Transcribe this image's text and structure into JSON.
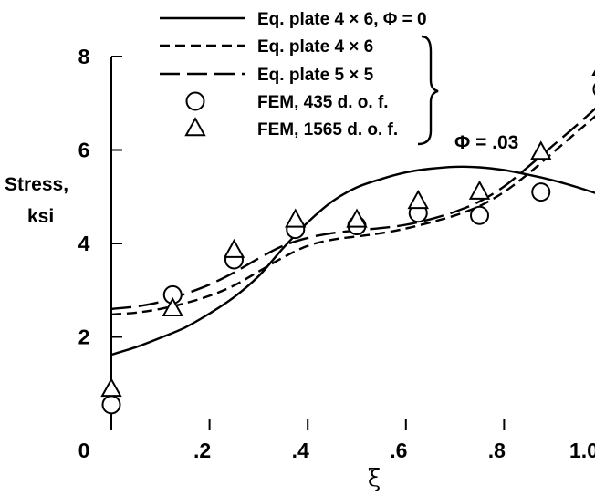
{
  "chart_data": {
    "type": "line",
    "title": "",
    "xlabel": "ξ",
    "ylabel": [
      "Stress,",
      "ksi"
    ],
    "xlim": [
      0,
      1.0
    ],
    "ylim": [
      0,
      8
    ],
    "xticks": [
      0,
      0.2,
      0.4,
      0.6,
      0.8,
      1.0
    ],
    "xtick_labels": [
      "0",
      ".2",
      ".4",
      ".6",
      ".8",
      "1.0"
    ],
    "yticks": [
      2,
      4,
      6,
      8
    ],
    "ytick_labels": [
      "2",
      "4",
      "6",
      "8"
    ],
    "legend_position": "top",
    "annotation": "Φ = .03",
    "series": [
      {
        "name": "Eq.  plate 4 × 6, Φ = 0",
        "kind": "line",
        "dash": "solid",
        "x": [
          0,
          0.05,
          0.1,
          0.15,
          0.2,
          0.25,
          0.3,
          0.35,
          0.4,
          0.45,
          0.5,
          0.55,
          0.6,
          0.65,
          0.7,
          0.75,
          0.8,
          0.85,
          0.9,
          0.95,
          1.0
        ],
        "y": [
          1.62,
          1.78,
          1.98,
          2.2,
          2.5,
          2.85,
          3.3,
          3.9,
          4.45,
          4.9,
          5.2,
          5.38,
          5.52,
          5.6,
          5.64,
          5.63,
          5.57,
          5.47,
          5.35,
          5.2,
          5.03
        ]
      },
      {
        "name": "Eq.  plate 4 × 6",
        "kind": "line",
        "dash": "short",
        "x": [
          0,
          0.05,
          0.1,
          0.15,
          0.2,
          0.25,
          0.3,
          0.35,
          0.4,
          0.45,
          0.5,
          0.55,
          0.6,
          0.65,
          0.7,
          0.75,
          0.8,
          0.85,
          0.9,
          0.95,
          1.0
        ],
        "y": [
          2.48,
          2.52,
          2.6,
          2.72,
          2.88,
          3.1,
          3.4,
          3.7,
          3.95,
          4.08,
          4.15,
          4.22,
          4.32,
          4.45,
          4.6,
          4.8,
          5.1,
          5.5,
          5.95,
          6.4,
          6.85
        ]
      },
      {
        "name": "Eq.  plate 5 × 5",
        "kind": "line",
        "dash": "long",
        "x": [
          0,
          0.05,
          0.1,
          0.15,
          0.2,
          0.25,
          0.3,
          0.35,
          0.4,
          0.45,
          0.5,
          0.55,
          0.6,
          0.65,
          0.7,
          0.75,
          0.8,
          0.85,
          0.9,
          0.95,
          1.0
        ],
        "y": [
          2.6,
          2.65,
          2.75,
          2.92,
          3.12,
          3.38,
          3.68,
          3.95,
          4.12,
          4.22,
          4.28,
          4.33,
          4.4,
          4.52,
          4.68,
          4.9,
          5.22,
          5.65,
          6.1,
          6.55,
          7.02
        ]
      },
      {
        "name": "FEM,  435 d. o. f.",
        "kind": "marker",
        "marker": "circle",
        "x": [
          0,
          0.125,
          0.25,
          0.375,
          0.5,
          0.625,
          0.75,
          0.875,
          1.0
        ],
        "y": [
          0.55,
          2.9,
          3.65,
          4.3,
          4.38,
          4.65,
          4.6,
          5.1,
          7.3
        ]
      },
      {
        "name": "FEM,  1565 d. o. f.",
        "kind": "marker",
        "marker": "triangle",
        "x": [
          0,
          0.125,
          0.25,
          0.375,
          0.5,
          0.625,
          0.75,
          0.875,
          1.0
        ],
        "y": [
          0.88,
          2.6,
          3.85,
          4.5,
          4.5,
          4.9,
          5.1,
          5.95,
          7.75
        ]
      }
    ]
  }
}
